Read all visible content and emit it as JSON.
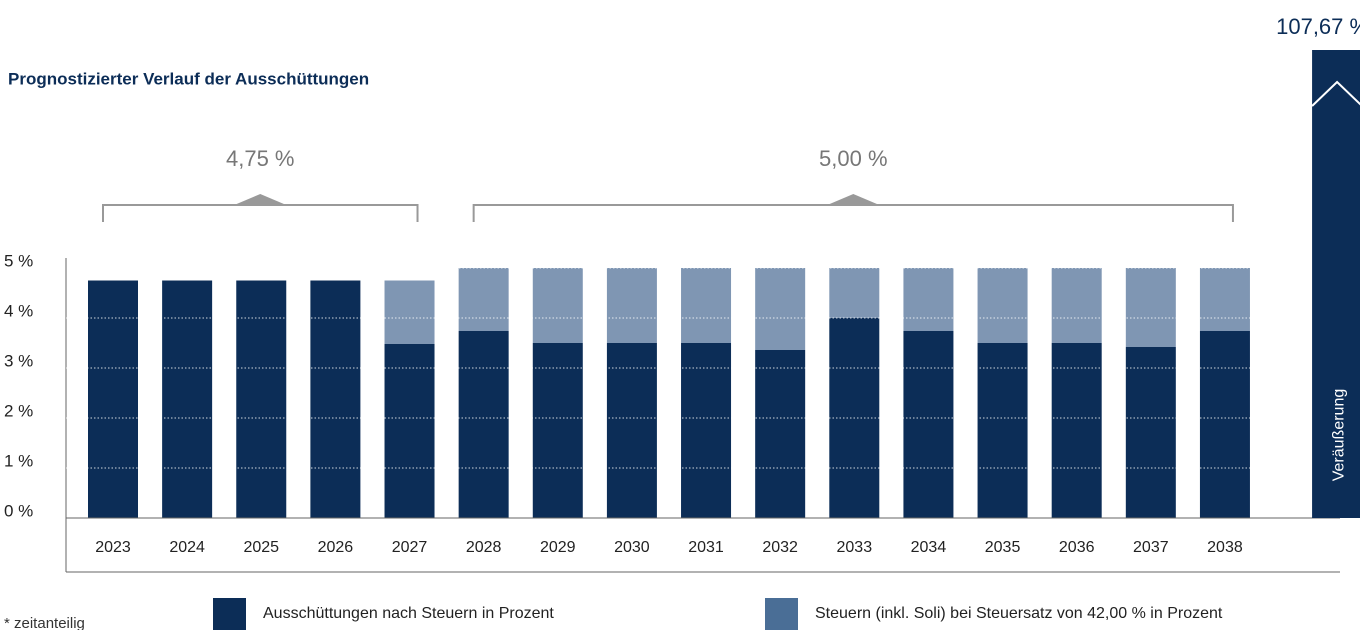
{
  "chart_data": {
    "type": "stacked_bar",
    "title": "Prognostizierter Verlauf der Ausschüttungen",
    "categories": [
      "2023",
      "2024",
      "2025",
      "2026",
      "2027",
      "2028",
      "2029",
      "2030",
      "2031",
      "2032",
      "2033",
      "2034",
      "2035",
      "2036",
      "2037",
      "2038"
    ],
    "series": [
      {
        "name": "Ausschüttungen nach Steuern in Prozent",
        "color": "#0c2d57",
        "values": [
          4.75,
          4.75,
          4.75,
          4.75,
          3.48,
          3.74,
          3.5,
          3.5,
          3.5,
          3.36,
          4.0,
          3.74,
          3.5,
          3.5,
          3.42,
          3.74
        ]
      },
      {
        "name": "Steuern (inkl. Soli) bei Steuersatz von 42,00 % in Prozent",
        "color": "#7f96b3",
        "values": [
          0,
          0,
          0,
          0,
          1.27,
          1.26,
          1.5,
          1.5,
          1.5,
          1.64,
          1.0,
          1.26,
          1.5,
          1.5,
          1.58,
          1.26
        ]
      }
    ],
    "ylim": [
      0,
      5
    ],
    "yticks": [
      {
        "value": 0,
        "label": "0 %"
      },
      {
        "value": 1,
        "label": "1 %"
      },
      {
        "value": 2,
        "label": "2 %"
      },
      {
        "value": 3,
        "label": "3 %"
      },
      {
        "value": 4,
        "label": "4 %"
      },
      {
        "value": 5,
        "label": "5 %"
      }
    ],
    "grid": true,
    "brackets": [
      {
        "value": 4.75,
        "label": "4,75 %"
      },
      {
        "value": 5.0,
        "label": "5,00 %"
      }
    ],
    "exit": {
      "label": "Veräußerung",
      "value": 107.67,
      "value_label": "107,67 %"
    },
    "footnote": "* zeitanteilig"
  }
}
